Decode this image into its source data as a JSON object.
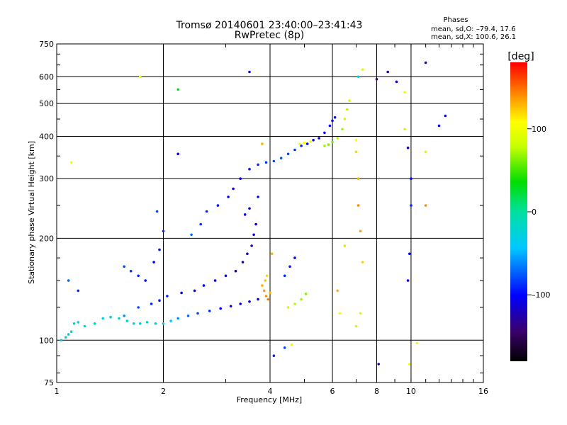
{
  "header": {
    "title_line1": "Tromsø 20140601 23:40:00–23:41:43",
    "title_line2": "RwPretec (8p)"
  },
  "phase_box": {
    "heading": "Phases",
    "line1": "mean, sd,O: –79.4, 17.6",
    "line2": "mean, sd,X: 100.6, 26.1"
  },
  "colorbar": {
    "unit_label": "[deg]",
    "range": [
      -180,
      180
    ],
    "tick_labels": [
      "100",
      "0",
      "–100"
    ],
    "tick_values": [
      100,
      0,
      -100
    ]
  },
  "chart_data": {
    "type": "scatter",
    "title": "Tromsø 20140601 23:40:00–23:41:43",
    "subtitle": "RwPretec (8p)",
    "xlabel": "Frequency [MHz]",
    "ylabel": "Stationary phase Virtual Height [km]",
    "x_scale": "log",
    "y_scale": "log",
    "xlim": [
      1,
      16
    ],
    "ylim": [
      75,
      750
    ],
    "x_ticks": [
      1,
      2,
      4,
      6,
      8,
      10,
      16
    ],
    "x_tick_labels": [
      "1",
      "2",
      "4",
      "6",
      "8",
      "10",
      "16"
    ],
    "y_ticks": [
      75,
      100,
      200,
      300,
      400,
      500,
      600,
      750
    ],
    "y_tick_labels": [
      "75",
      "100",
      "200",
      "300",
      "400",
      "500",
      "600",
      "750"
    ],
    "grid": true,
    "color_scale": "rainbow phase, -180 to 180 deg",
    "points": [
      [
        1.03,
        100,
        -40
      ],
      [
        1.06,
        102,
        -35
      ],
      [
        1.08,
        104,
        -30
      ],
      [
        1.1,
        106,
        -25
      ],
      [
        1.12,
        112,
        -30
      ],
      [
        1.15,
        113,
        -25
      ],
      [
        1.2,
        110,
        -30
      ],
      [
        1.28,
        112,
        -20
      ],
      [
        1.35,
        116,
        -25
      ],
      [
        1.42,
        117,
        -30
      ],
      [
        1.5,
        116,
        -20
      ],
      [
        1.58,
        114,
        -20
      ],
      [
        1.65,
        112,
        -25
      ],
      [
        1.72,
        112,
        -30
      ],
      [
        1.8,
        113,
        -20
      ],
      [
        1.9,
        112,
        -25
      ],
      [
        2.0,
        112,
        -30
      ],
      [
        2.1,
        114,
        -40
      ],
      [
        2.2,
        116,
        -60
      ],
      [
        2.35,
        118,
        -70
      ],
      [
        2.5,
        120,
        -80
      ],
      [
        2.7,
        122,
        -90
      ],
      [
        2.9,
        124,
        -100
      ],
      [
        3.1,
        126,
        -110
      ],
      [
        3.3,
        128,
        -110
      ],
      [
        3.5,
        130,
        -115
      ],
      [
        3.7,
        132,
        -110
      ],
      [
        1.55,
        118,
        -60
      ],
      [
        1.7,
        125,
        -80
      ],
      [
        1.85,
        128,
        -90
      ],
      [
        1.95,
        131,
        -95
      ],
      [
        2.05,
        135,
        -90
      ],
      [
        2.25,
        138,
        -100
      ],
      [
        2.45,
        140,
        -105
      ],
      [
        2.6,
        145,
        -100
      ],
      [
        2.8,
        150,
        -110
      ],
      [
        3.0,
        155,
        -105
      ],
      [
        3.2,
        160,
        -110
      ],
      [
        3.35,
        170,
        -115
      ],
      [
        3.45,
        180,
        -110
      ],
      [
        3.55,
        190,
        -120
      ],
      [
        3.6,
        205,
        -110
      ],
      [
        3.65,
        220,
        -115
      ],
      [
        3.4,
        235,
        -105
      ],
      [
        3.5,
        245,
        -110
      ],
      [
        3.7,
        265,
        -100
      ],
      [
        1.55,
        165,
        -80
      ],
      [
        1.62,
        160,
        -85
      ],
      [
        1.7,
        155,
        -90
      ],
      [
        1.78,
        150,
        -95
      ],
      [
        1.88,
        170,
        -100
      ],
      [
        1.95,
        185,
        -95
      ],
      [
        2.0,
        210,
        -90
      ],
      [
        1.92,
        240,
        -80
      ],
      [
        2.4,
        205,
        -70
      ],
      [
        2.55,
        220,
        -85
      ],
      [
        2.65,
        240,
        -90
      ],
      [
        2.85,
        250,
        -95
      ],
      [
        3.05,
        265,
        -100
      ],
      [
        3.15,
        280,
        -105
      ],
      [
        3.3,
        300,
        -110
      ],
      [
        3.5,
        320,
        -100
      ],
      [
        3.7,
        330,
        -90
      ],
      [
        3.9,
        335,
        -85
      ],
      [
        4.1,
        338,
        -80
      ],
      [
        4.3,
        345,
        -75
      ],
      [
        4.5,
        355,
        -80
      ],
      [
        4.7,
        365,
        -85
      ],
      [
        4.9,
        375,
        -90
      ],
      [
        5.1,
        380,
        -95
      ],
      [
        5.3,
        390,
        -100
      ],
      [
        5.5,
        395,
        -105
      ],
      [
        5.7,
        410,
        -110
      ],
      [
        5.9,
        430,
        -105
      ],
      [
        6.0,
        445,
        -100
      ],
      [
        6.1,
        455,
        -95
      ],
      [
        3.8,
        145,
        130
      ],
      [
        3.85,
        140,
        135
      ],
      [
        3.9,
        135,
        140
      ],
      [
        3.95,
        132,
        145
      ],
      [
        4.0,
        138,
        130
      ],
      [
        3.88,
        150,
        125
      ],
      [
        3.92,
        155,
        120
      ],
      [
        4.05,
        180,
        130
      ],
      [
        4.5,
        125,
        80
      ],
      [
        4.7,
        128,
        75
      ],
      [
        4.9,
        132,
        70
      ],
      [
        5.05,
        137,
        65
      ],
      [
        4.4,
        155,
        -90
      ],
      [
        4.55,
        165,
        -95
      ],
      [
        4.7,
        175,
        -100
      ],
      [
        4.85,
        380,
        110
      ],
      [
        5.0,
        383,
        105
      ],
      [
        5.2,
        386,
        110
      ],
      [
        5.7,
        375,
        70
      ],
      [
        5.85,
        378,
        65
      ],
      [
        6.0,
        385,
        60
      ],
      [
        6.2,
        395,
        75
      ],
      [
        6.4,
        420,
        70
      ],
      [
        6.5,
        450,
        80
      ],
      [
        6.6,
        480,
        75
      ],
      [
        6.7,
        510,
        85
      ],
      [
        7.0,
        390,
        110
      ],
      [
        7.0,
        360,
        120
      ],
      [
        7.1,
        300,
        130
      ],
      [
        7.1,
        250,
        140
      ],
      [
        7.2,
        210,
        135
      ],
      [
        7.3,
        170,
        120
      ],
      [
        7.2,
        120,
        90
      ],
      [
        7.0,
        110,
        80
      ],
      [
        6.2,
        140,
        130
      ],
      [
        6.3,
        120,
        110
      ],
      [
        6.5,
        190,
        120
      ],
      [
        8.6,
        620,
        -130
      ],
      [
        9.1,
        580,
        -120
      ],
      [
        8.0,
        590,
        -140
      ],
      [
        7.1,
        600,
        -20
      ],
      [
        7.3,
        630,
        90
      ],
      [
        9.6,
        540,
        100
      ],
      [
        9.6,
        420,
        80
      ],
      [
        9.8,
        370,
        -110
      ],
      [
        10.0,
        300,
        -100
      ],
      [
        10.0,
        250,
        -90
      ],
      [
        9.9,
        180,
        -100
      ],
      [
        9.8,
        150,
        -105
      ],
      [
        11.0,
        660,
        -120
      ],
      [
        11.0,
        360,
        90
      ],
      [
        11.0,
        250,
        140
      ],
      [
        12.5,
        460,
        -100
      ],
      [
        12.0,
        430,
        -105
      ],
      [
        1.72,
        600,
        100
      ],
      [
        2.2,
        550,
        30
      ],
      [
        2.2,
        355,
        -110
      ],
      [
        3.5,
        620,
        -110
      ],
      [
        3.8,
        380,
        130
      ],
      [
        4.1,
        90,
        -90
      ],
      [
        4.4,
        95,
        -80
      ],
      [
        4.6,
        97,
        100
      ],
      [
        8.1,
        85,
        -120
      ],
      [
        9.9,
        85,
        100
      ],
      [
        10.4,
        98,
        100
      ],
      [
        1.1,
        335,
        100
      ],
      [
        1.08,
        150,
        -70
      ],
      [
        1.15,
        140,
        -90
      ]
    ]
  }
}
